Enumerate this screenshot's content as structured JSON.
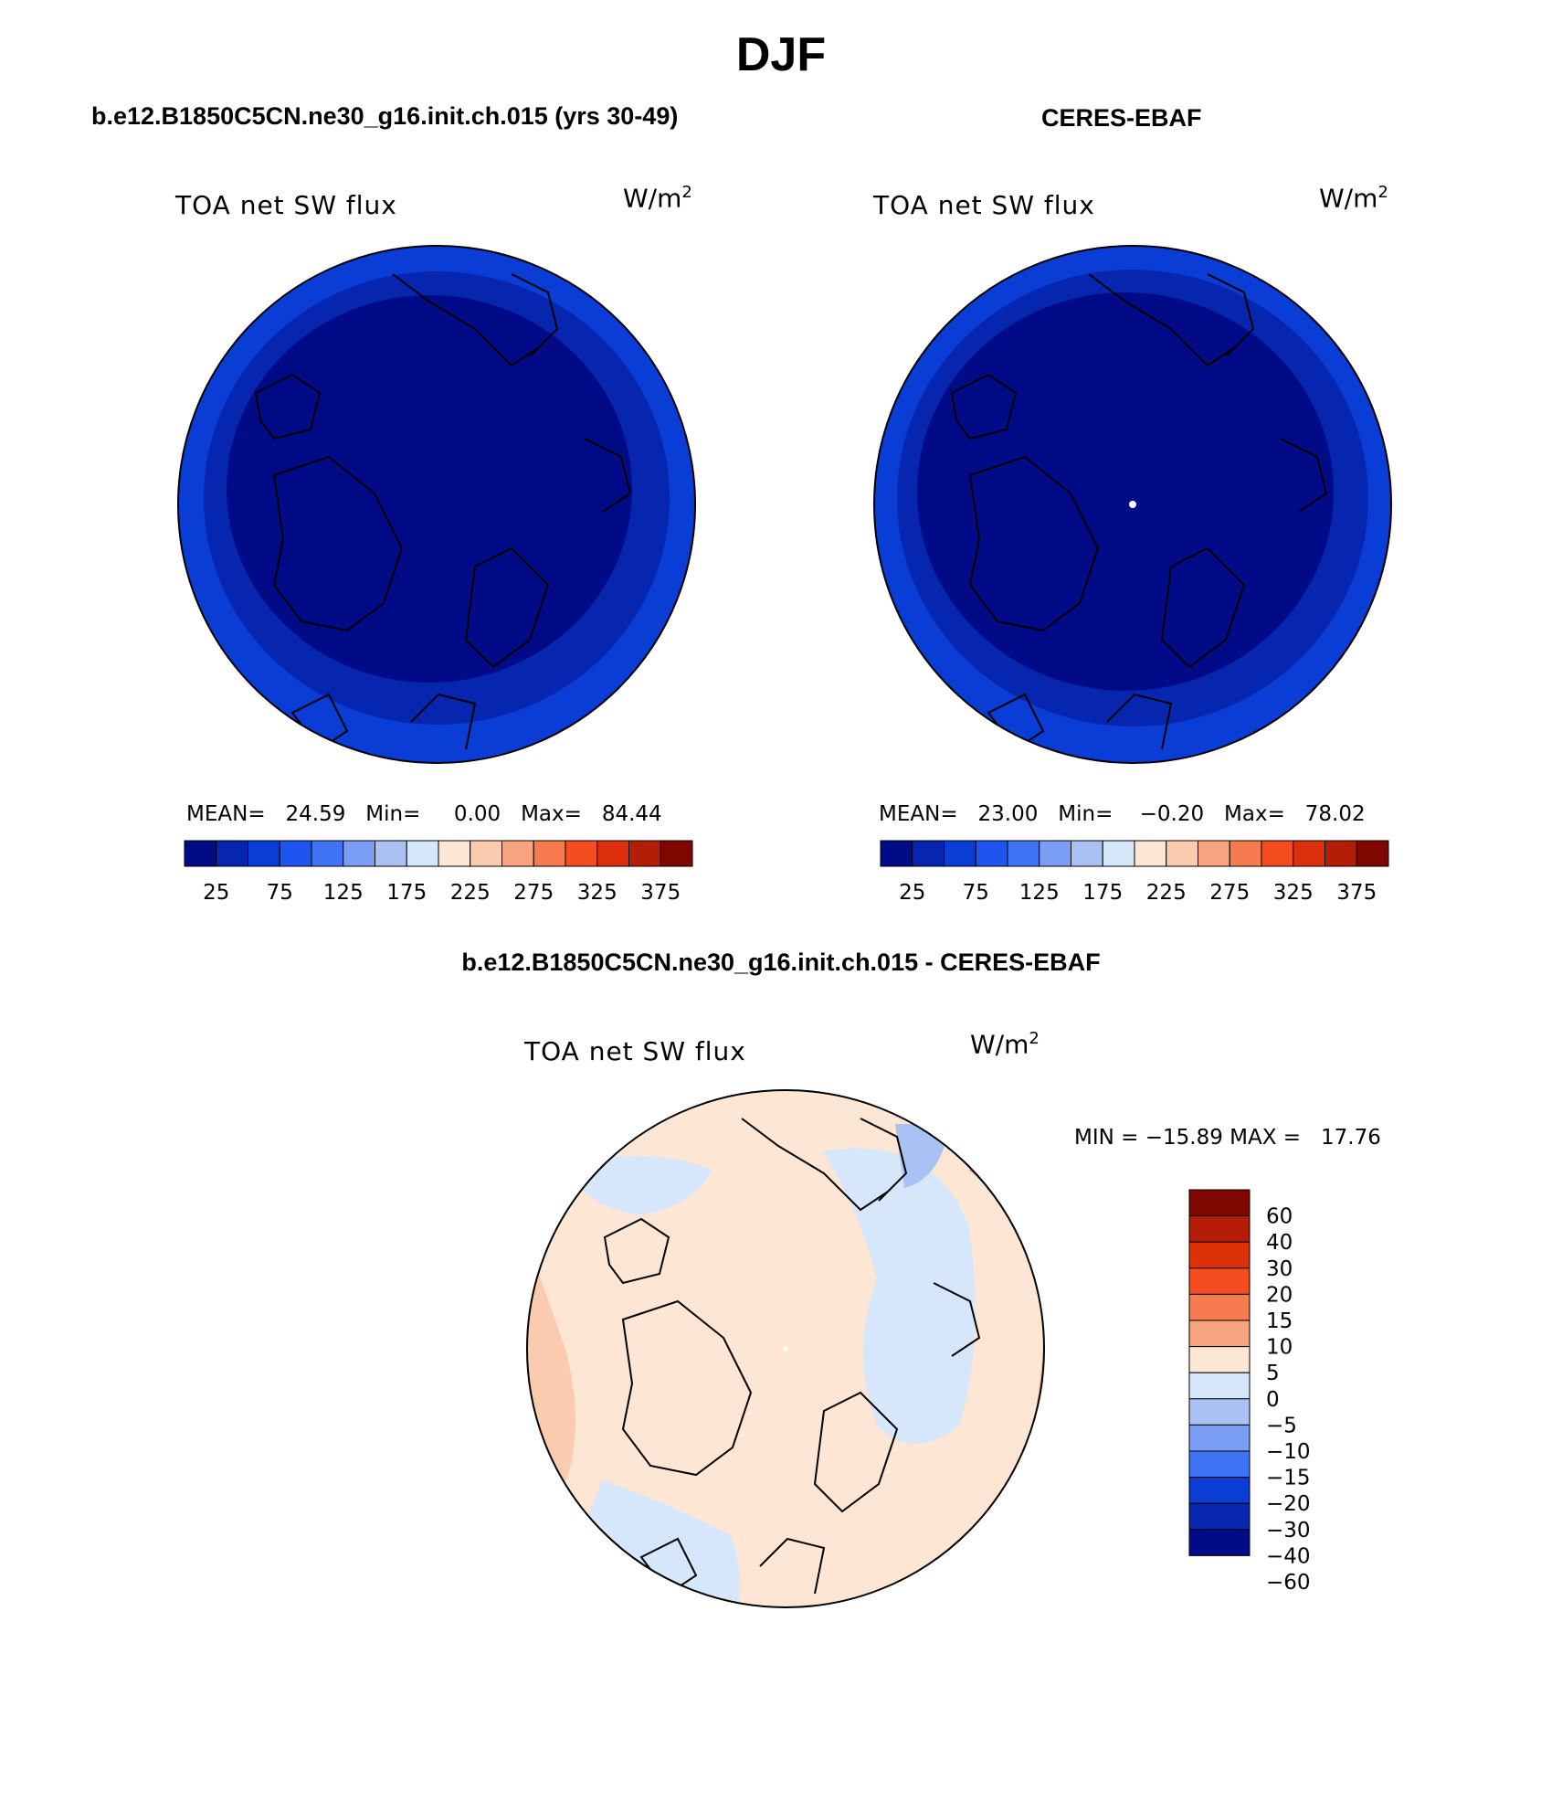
{
  "title": "DJF",
  "panels": [
    {
      "case_title": "b.e12.B1850C5CN.ne30_g16.init.ch.015 (yrs 30-49)",
      "label": "TOA net SW flux",
      "units_base": "W/m",
      "units_exp": "2",
      "stats": "MEAN=   24.59   Min=     0.00   Max=   84.44"
    },
    {
      "case_title": "CERES-EBAF",
      "label": "TOA net SW flux",
      "units_base": "W/m",
      "units_exp": "2",
      "stats": "MEAN=   23.00   Min=    −0.20   Max=   78.02"
    },
    {
      "case_title": "b.e12.B1850C5CN.ne30_g16.init.ch.015 - CERES-EBAF",
      "label": "TOA net SW flux",
      "units_base": "W/m",
      "units_exp": "2",
      "stats": "MIN = −15.89 MAX =   17.76"
    }
  ],
  "colorbar_abs": {
    "colors": [
      "#020b87",
      "#0626b0",
      "#0a3dd6",
      "#1e55ef",
      "#3f73f3",
      "#7b9ef5",
      "#aac2f3",
      "#d6e7fb",
      "#fde6d4",
      "#fbcbb0",
      "#f8a480",
      "#f67b4e",
      "#f44d1f",
      "#de2f0c",
      "#b41d07",
      "#7e0702"
    ],
    "labels": [
      "25",
      "75",
      "125",
      "175",
      "225",
      "275",
      "325",
      "375"
    ]
  },
  "colorbar_diff": {
    "colors_top_to_bottom": [
      "#7e0702",
      "#b41d07",
      "#de3108",
      "#f44d1f",
      "#f67b4e",
      "#f8a480",
      "#fde6d4",
      "#d6e7fb",
      "#aac2f3",
      "#7b9ef5",
      "#3f73f3",
      "#0a3dd6",
      "#0626b0",
      "#020b87"
    ],
    "labels_top_to_bottom": [
      "60",
      "40",
      "30",
      "20",
      "15",
      "10",
      "5",
      "0",
      "−5",
      "−10",
      "−15",
      "−20",
      "−30",
      "−40",
      "−60"
    ]
  },
  "map_colors": {
    "deep": "#020b87",
    "mid": "#0626b0",
    "edge": "#0a3dd6",
    "diff_base": "#fde6d4",
    "diff_neg": "#d6e7fb",
    "diff_pos": "#fbcbb0",
    "diff_pos2": "#f8a480",
    "diff_neg2": "#aac2f3"
  }
}
